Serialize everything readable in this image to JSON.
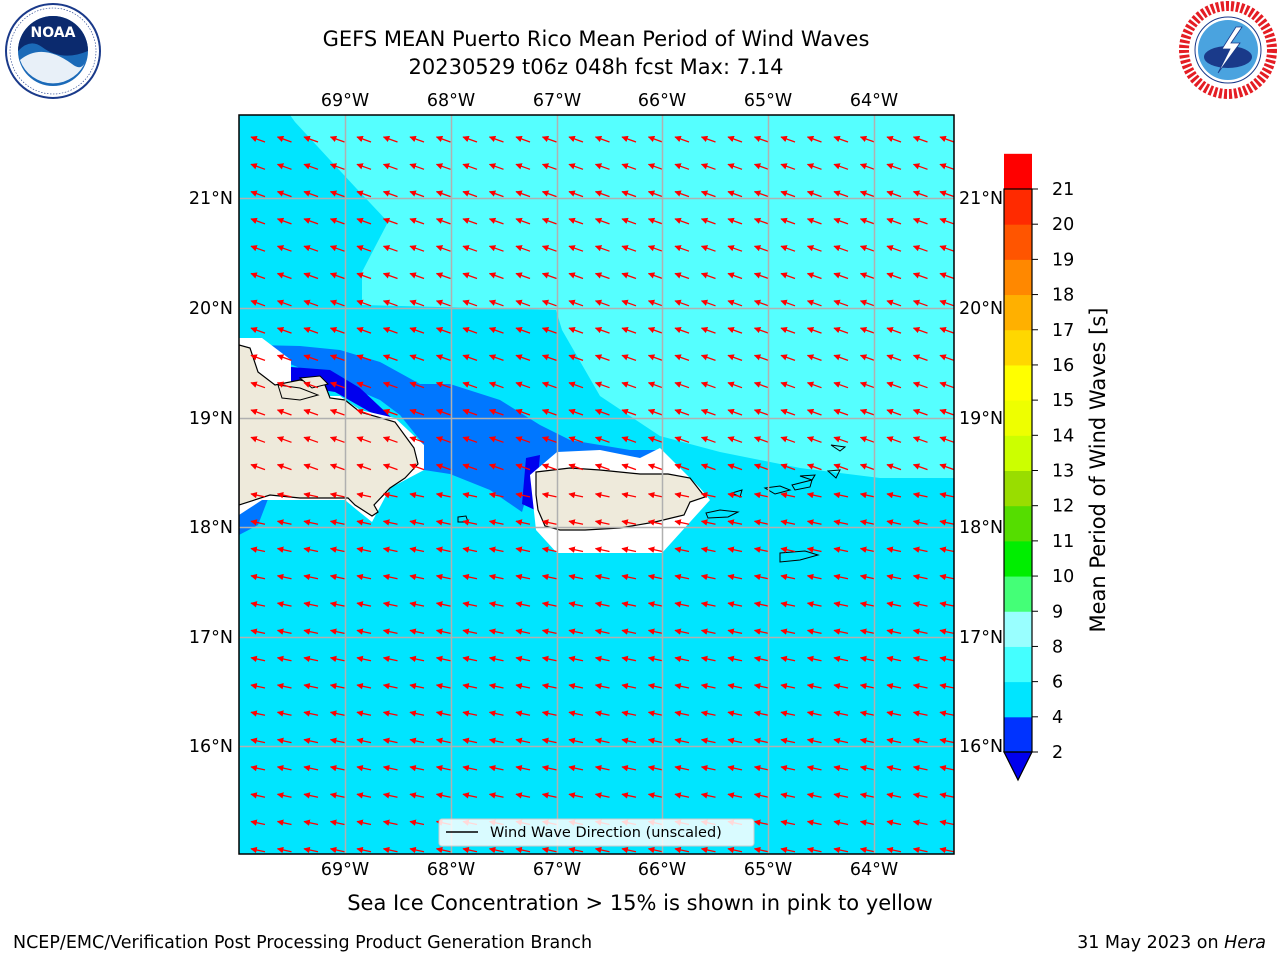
{
  "title": {
    "line1": "GEFS MEAN Puerto Rico Mean Period of Wind Waves",
    "line2": "20230529 t06z 048h fcst   Max: 7.14"
  },
  "map": {
    "lon_labels": [
      "69°W",
      "68°W",
      "67°W",
      "66°W",
      "65°W",
      "64°W"
    ],
    "lat_labels": [
      "21°N",
      "20°N",
      "19°N",
      "18°N",
      "17°N",
      "16°N"
    ],
    "legend_label": "Wind Wave Direction (unscaled)",
    "arrow_color": "#ff0000",
    "land_color": "#eeeadb"
  },
  "colorbar": {
    "label": "Mean Period of Wind Waves [s]",
    "ticks": [
      "2",
      "4",
      "6",
      "8",
      "9",
      "10",
      "11",
      "12",
      "13",
      "14",
      "15",
      "16",
      "17",
      "18",
      "19",
      "20",
      "21"
    ],
    "colors": [
      "#0033ff",
      "#00e5ff",
      "#44ffff",
      "#99ffff",
      "#44ff77",
      "#00ee00",
      "#55dd00",
      "#99dd00",
      "#ccff00",
      "#eeff00",
      "#ffff00",
      "#ffd700",
      "#ffb000",
      "#ff8800",
      "#ff5500",
      "#ff2a00",
      "#ff0000"
    ],
    "under_color": "#0000ee"
  },
  "note": "Sea Ice Concentration > 15% is shown in pink to yellow",
  "footer": {
    "left": "NCEP/EMC/Verification Post Processing Product Generation Branch",
    "right_date": "31 May 2023 on ",
    "right_host": "Hera"
  },
  "logos": {
    "noaa": "NOAA",
    "nws": "NATIONAL WEATHER SERVICE"
  }
}
